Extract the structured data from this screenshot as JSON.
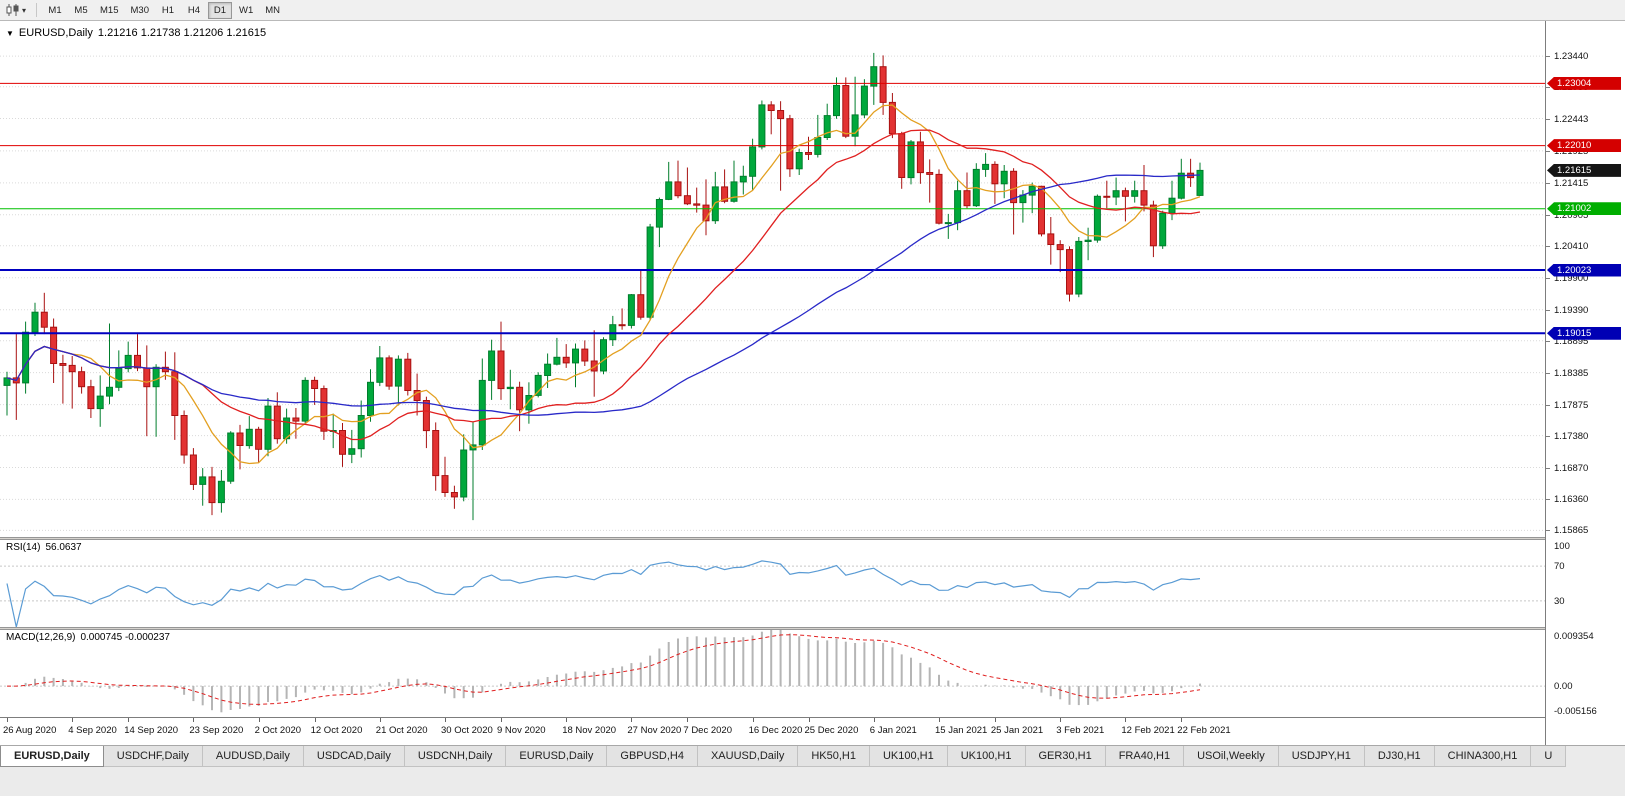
{
  "toolbar": {
    "timeframes": [
      "M1",
      "M5",
      "M15",
      "M30",
      "H1",
      "H4",
      "D1",
      "W1",
      "MN"
    ],
    "active_timeframe": "D1"
  },
  "chart_header": {
    "marker": "▼",
    "symbol": "EURUSD,Daily",
    "ohlc": "1.21216 1.21738 1.21206 1.21615"
  },
  "rsi_panel": {
    "label": "RSI(14)",
    "value": "56.0637",
    "ticks": [
      "100",
      "70",
      "30"
    ],
    "dotted_levels": [
      70,
      30
    ]
  },
  "macd_panel": {
    "label": "MACD(12,26,9)",
    "values": "0.000745 -0.000237",
    "ticks": [
      "0.009354",
      "0.00",
      "-0.005156"
    ]
  },
  "chart_data": {
    "type": "candlestick",
    "symbol": "EURUSD",
    "period": "Daily",
    "ylim": [
      1.1576,
      1.24
    ],
    "price_ticks": [
      "1.23440",
      "1.22950",
      "1.22443",
      "1.21925",
      "1.21415",
      "1.20905",
      "1.20410",
      "1.19900",
      "1.19390",
      "1.18895",
      "1.18385",
      "1.17875",
      "1.17380",
      "1.16870",
      "1.16360",
      "1.15865"
    ],
    "x_labels": [
      "26 Aug 2020",
      "4 Sep 2020",
      "14 Sep 2020",
      "23 Sep 2020",
      "2 Oct 2020",
      "12 Oct 2020",
      "21 Oct 2020",
      "30 Oct 2020",
      "9 Nov 2020",
      "18 Nov 2020",
      "27 Nov 2020",
      "7 Dec 2020",
      "16 Dec 2020",
      "25 Dec 2020",
      "6 Jan 2021",
      "15 Jan 2021",
      "25 Jan 2021",
      "3 Feb 2021",
      "12 Feb 2021",
      "22 Feb 2021"
    ],
    "x_label_indices": [
      0,
      7,
      13,
      20,
      27,
      33,
      40,
      47,
      53,
      60,
      67,
      73,
      80,
      86,
      93,
      100,
      106,
      113,
      120,
      126
    ],
    "levels": [
      {
        "label": "1.23004",
        "price": 1.23004,
        "color": "#e00000",
        "box": "#d40000",
        "width": 1
      },
      {
        "label": "1.22010",
        "price": 1.2201,
        "color": "#e00000",
        "box": "#d40000",
        "width": 1
      },
      {
        "label": "1.21002",
        "price": 1.21002,
        "color": "#00c000",
        "box": "#00ae00",
        "width": 1
      },
      {
        "label": "1.20023",
        "price": 1.20023,
        "color": "#0000c0",
        "box": "#0000b4",
        "width": 2
      },
      {
        "label": "1.19015",
        "price": 1.19015,
        "color": "#0000c0",
        "box": "#0000b4",
        "width": 2
      }
    ],
    "current_price": 1.21615,
    "current_price_label": "1.21615",
    "current_price_box_color": "#151515",
    "candle_colors": {
      "up": "#00a83c",
      "up_stroke": "#007d2c",
      "down": "#e23232",
      "down_stroke": "#a81111"
    },
    "moving_averages": [
      {
        "name": "fast-ma",
        "period": 8,
        "color": "#e3a021"
      },
      {
        "name": "mid-ma",
        "period": 20,
        "color": "#e02020"
      },
      {
        "name": "slow-ma",
        "period": 50,
        "color": "#2929c8"
      }
    ],
    "indicators": {
      "rsi": {
        "period": 14,
        "color": "#5a9bd4",
        "last": 56.0637,
        "range": [
          0,
          100
        ],
        "levels": [
          70,
          30
        ]
      },
      "macd": {
        "fast": 12,
        "slow": 26,
        "signal": 9,
        "main_last": 0.000745,
        "signal_last": -0.000237,
        "hist_color": "#b5b5b5",
        "signal_color": "#e02020",
        "scale_max": 0.009354,
        "scale_min": -0.005156
      }
    },
    "ohlc": [
      [
        1.1818,
        1.184,
        1.177,
        1.183
      ],
      [
        1.183,
        1.19,
        1.1763,
        1.1822
      ],
      [
        1.1822,
        1.192,
        1.1805,
        1.1903
      ],
      [
        1.1903,
        1.195,
        1.1897,
        1.1935
      ],
      [
        1.1935,
        1.1966,
        1.19,
        1.1911
      ],
      [
        1.1911,
        1.1925,
        1.1822,
        1.1853
      ],
      [
        1.1853,
        1.1867,
        1.1789,
        1.185
      ],
      [
        1.185,
        1.1865,
        1.1781,
        1.184
      ],
      [
        1.184,
        1.1848,
        1.1805,
        1.1816
      ],
      [
        1.1816,
        1.1827,
        1.1766,
        1.1781
      ],
      [
        1.1781,
        1.1834,
        1.1752,
        1.1801
      ],
      [
        1.1801,
        1.1917,
        1.1788,
        1.1815
      ],
      [
        1.1815,
        1.1874,
        1.1809,
        1.1845
      ],
      [
        1.1845,
        1.1888,
        1.1839,
        1.1866
      ],
      [
        1.1866,
        1.19,
        1.1841,
        1.1846
      ],
      [
        1.1846,
        1.1882,
        1.1737,
        1.1816
      ],
      [
        1.1816,
        1.1852,
        1.1736,
        1.1847
      ],
      [
        1.1847,
        1.1872,
        1.1827,
        1.184
      ],
      [
        1.184,
        1.1871,
        1.1731,
        1.177
      ],
      [
        1.177,
        1.1778,
        1.1693,
        1.1707
      ],
      [
        1.1707,
        1.1718,
        1.1651,
        1.166
      ],
      [
        1.166,
        1.1686,
        1.1626,
        1.1672
      ],
      [
        1.1672,
        1.1688,
        1.1611,
        1.1631
      ],
      [
        1.1631,
        1.1683,
        1.1615,
        1.1665
      ],
      [
        1.1665,
        1.1745,
        1.1661,
        1.1742
      ],
      [
        1.1742,
        1.1755,
        1.1684,
        1.1722
      ],
      [
        1.1722,
        1.1769,
        1.1717,
        1.1748
      ],
      [
        1.1748,
        1.1752,
        1.1695,
        1.1716
      ],
      [
        1.1716,
        1.1798,
        1.1705,
        1.1785
      ],
      [
        1.1785,
        1.1807,
        1.1725,
        1.1733
      ],
      [
        1.1733,
        1.1781,
        1.1725,
        1.1766
      ],
      [
        1.1766,
        1.1782,
        1.1733,
        1.1761
      ],
      [
        1.1761,
        1.1831,
        1.1755,
        1.1826
      ],
      [
        1.1826,
        1.1832,
        1.1787,
        1.1813
      ],
      [
        1.1813,
        1.1818,
        1.1731,
        1.1745
      ],
      [
        1.1745,
        1.1773,
        1.1718,
        1.1746
      ],
      [
        1.1746,
        1.1758,
        1.1688,
        1.1708
      ],
      [
        1.1708,
        1.1747,
        1.1694,
        1.1717
      ],
      [
        1.1717,
        1.1794,
        1.1703,
        1.177
      ],
      [
        1.177,
        1.1844,
        1.176,
        1.1823
      ],
      [
        1.1823,
        1.1881,
        1.1817,
        1.1862
      ],
      [
        1.1862,
        1.1866,
        1.1811,
        1.1817
      ],
      [
        1.1817,
        1.1866,
        1.1786,
        1.186
      ],
      [
        1.186,
        1.187,
        1.1802,
        1.181
      ],
      [
        1.181,
        1.1837,
        1.177,
        1.1794
      ],
      [
        1.1794,
        1.18,
        1.1718,
        1.1746
      ],
      [
        1.1746,
        1.1759,
        1.165,
        1.1674
      ],
      [
        1.1674,
        1.1704,
        1.164,
        1.1647
      ],
      [
        1.1647,
        1.1658,
        1.1621,
        1.164
      ],
      [
        1.164,
        1.174,
        1.1633,
        1.1715
      ],
      [
        1.1715,
        1.176,
        1.1603,
        1.1723
      ],
      [
        1.1723,
        1.1861,
        1.1715,
        1.1826
      ],
      [
        1.1826,
        1.1891,
        1.1795,
        1.1873
      ],
      [
        1.1873,
        1.192,
        1.1795,
        1.1813
      ],
      [
        1.1813,
        1.1843,
        1.178,
        1.1815
      ],
      [
        1.1815,
        1.1824,
        1.1745,
        1.1779
      ],
      [
        1.1779,
        1.1823,
        1.1757,
        1.1802
      ],
      [
        1.1802,
        1.1839,
        1.1799,
        1.1834
      ],
      [
        1.1834,
        1.1869,
        1.1814,
        1.1852
      ],
      [
        1.1852,
        1.1894,
        1.185,
        1.1863
      ],
      [
        1.1863,
        1.1884,
        1.1846,
        1.1854
      ],
      [
        1.1854,
        1.1885,
        1.1815,
        1.1876
      ],
      [
        1.1876,
        1.189,
        1.1849,
        1.1857
      ],
      [
        1.1857,
        1.1906,
        1.18,
        1.1841
      ],
      [
        1.1841,
        1.1895,
        1.1836,
        1.1891
      ],
      [
        1.1891,
        1.1929,
        1.1881,
        1.1915
      ],
      [
        1.1915,
        1.1941,
        1.1907,
        1.1914
      ],
      [
        1.1914,
        1.1964,
        1.1909,
        1.1963
      ],
      [
        1.1963,
        1.2003,
        1.1923,
        1.1927
      ],
      [
        1.1927,
        1.2076,
        1.1923,
        1.2071
      ],
      [
        1.2071,
        1.2118,
        1.2039,
        1.2115
      ],
      [
        1.2115,
        1.2175,
        1.2114,
        1.2143
      ],
      [
        1.2143,
        1.2177,
        1.2117,
        1.2121
      ],
      [
        1.2121,
        1.2166,
        1.2106,
        1.2108
      ],
      [
        1.2108,
        1.2134,
        1.2094,
        1.2106
      ],
      [
        1.2106,
        1.2147,
        1.2058,
        1.2081
      ],
      [
        1.2081,
        1.2159,
        1.2076,
        1.2135
      ],
      [
        1.2135,
        1.2163,
        1.2109,
        1.2112
      ],
      [
        1.2112,
        1.2177,
        1.211,
        1.2143
      ],
      [
        1.2143,
        1.2169,
        1.2123,
        1.2152
      ],
      [
        1.2152,
        1.2212,
        1.213,
        1.2199
      ],
      [
        1.2199,
        1.2273,
        1.2195,
        1.2266
      ],
      [
        1.2266,
        1.2272,
        1.2219,
        1.2257
      ],
      [
        1.2257,
        1.2272,
        1.2129,
        1.2244
      ],
      [
        1.2244,
        1.225,
        1.2151,
        1.2164
      ],
      [
        1.2164,
        1.2196,
        1.2154,
        1.219
      ],
      [
        1.219,
        1.2215,
        1.2178,
        1.2187
      ],
      [
        1.2187,
        1.225,
        1.2182,
        1.2214
      ],
      [
        1.2214,
        1.2268,
        1.221,
        1.2249
      ],
      [
        1.2249,
        1.231,
        1.2244,
        1.2297
      ],
      [
        1.2297,
        1.231,
        1.2213,
        1.2216
      ],
      [
        1.2216,
        1.2311,
        1.22,
        1.225
      ],
      [
        1.225,
        1.2307,
        1.2245,
        1.2296
      ],
      [
        1.2296,
        1.2349,
        1.2266,
        1.2327
      ],
      [
        1.2327,
        1.2345,
        1.225,
        1.227
      ],
      [
        1.227,
        1.2285,
        1.2213,
        1.222
      ],
      [
        1.222,
        1.2223,
        1.2132,
        1.215
      ],
      [
        1.215,
        1.221,
        1.2139,
        1.2207
      ],
      [
        1.2207,
        1.2223,
        1.214,
        1.2158
      ],
      [
        1.2158,
        1.2179,
        1.211,
        1.2155
      ],
      [
        1.2155,
        1.2163,
        1.2075,
        1.2077
      ],
      [
        1.2077,
        1.2092,
        1.2052,
        1.2078
      ],
      [
        1.2078,
        1.2145,
        1.2066,
        1.2129
      ],
      [
        1.2129,
        1.2158,
        1.2101,
        1.2105
      ],
      [
        1.2105,
        1.2173,
        1.2103,
        1.2163
      ],
      [
        1.2163,
        1.2189,
        1.2151,
        1.2171
      ],
      [
        1.2171,
        1.2176,
        1.2108,
        1.214
      ],
      [
        1.214,
        1.217,
        1.2117,
        1.216
      ],
      [
        1.216,
        1.2165,
        1.2059,
        1.211
      ],
      [
        1.211,
        1.213,
        1.2078,
        1.2122
      ],
      [
        1.2122,
        1.2142,
        1.2093,
        1.2136
      ],
      [
        1.2136,
        1.2137,
        1.2056,
        1.206
      ],
      [
        1.206,
        1.2087,
        1.2011,
        1.2043
      ],
      [
        1.2043,
        1.205,
        1.1999,
        1.2035
      ],
      [
        1.2035,
        1.204,
        1.1952,
        1.1964
      ],
      [
        1.1964,
        1.2055,
        1.1959,
        1.2048
      ],
      [
        1.2048,
        1.207,
        1.2018,
        1.205
      ],
      [
        1.205,
        1.2123,
        1.2046,
        1.212
      ],
      [
        1.212,
        1.2145,
        1.2101,
        1.2119
      ],
      [
        1.2119,
        1.215,
        1.2106,
        1.2129
      ],
      [
        1.2129,
        1.2134,
        1.208,
        1.212
      ],
      [
        1.212,
        1.2145,
        1.211,
        1.2129
      ],
      [
        1.2129,
        1.217,
        1.2096,
        1.2106
      ],
      [
        1.2106,
        1.2113,
        1.2023,
        1.2041
      ],
      [
        1.2041,
        1.2097,
        1.2036,
        1.2093
      ],
      [
        1.2093,
        1.2145,
        1.2082,
        1.2117
      ],
      [
        1.2117,
        1.218,
        1.2115,
        1.2157
      ],
      [
        1.2157,
        1.218,
        1.2135,
        1.215
      ],
      [
        1.21216,
        1.21738,
        1.21206,
        1.21615
      ]
    ]
  },
  "tabs": {
    "active_index": 0,
    "items": [
      "EURUSD,Daily",
      "USDCHF,Daily",
      "AUDUSD,Daily",
      "USDCAD,Daily",
      "USDCNH,Daily",
      "EURUSD,Daily",
      "GBPUSD,H4",
      "XAUUSD,Daily",
      "HK50,H1",
      "UK100,H1",
      "UK100,H1",
      "GER30,H1",
      "FRA40,H1",
      "USOil,Weekly",
      "USDJPY,H1",
      "DJ30,H1",
      "CHINA300,H1",
      "U"
    ]
  }
}
